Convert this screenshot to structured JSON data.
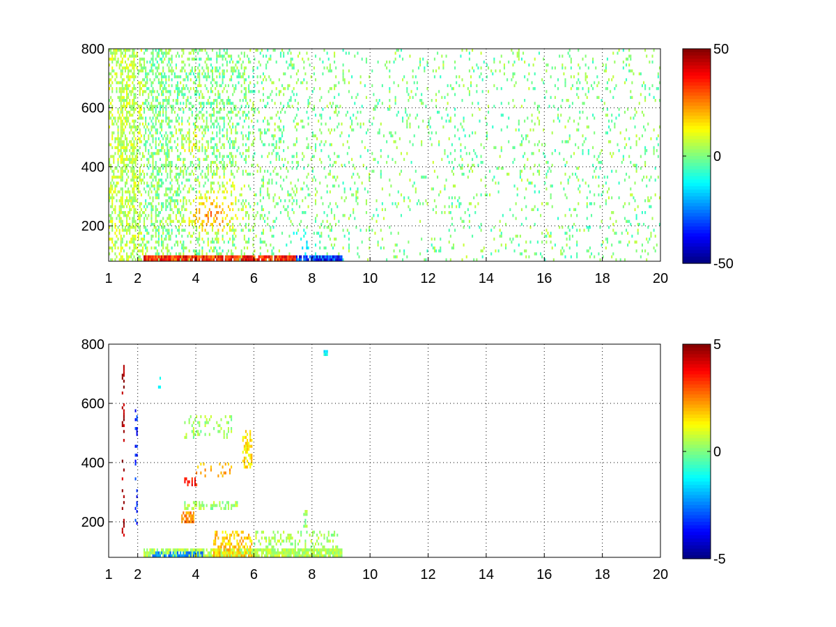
{
  "chart_data": [
    {
      "type": "heatmap",
      "title": "",
      "xlabel": "",
      "ylabel": "",
      "xlim": [
        1,
        20
      ],
      "ylim": [
        80,
        800
      ],
      "xticks": [
        "1",
        "2",
        "4",
        "6",
        "8",
        "10",
        "12",
        "14",
        "16",
        "18",
        "20"
      ],
      "yticks": [
        "200",
        "400",
        "600",
        "800"
      ],
      "grid": true,
      "colorbar": {
        "range": [
          -50,
          50
        ],
        "ticks": [
          "50",
          "0",
          "-50"
        ],
        "colormap": "jet"
      },
      "value_range": [
        -50,
        50
      ],
      "seed": 17,
      "blobs": [
        {
          "x": 4.5,
          "y": 230,
          "sx": 0.8,
          "sy": 60,
          "v": 22
        },
        {
          "x": 3.8,
          "y": 470,
          "sx": 0.5,
          "sy": 60,
          "v": 10
        },
        {
          "x": 5.0,
          "y": 300,
          "sx": 0.9,
          "sy": 90,
          "v": 6
        },
        {
          "x": 7.8,
          "y": 130,
          "sx": 0.5,
          "sy": 50,
          "v": -20
        }
      ],
      "bottom_band": {
        "xmin": 2.2,
        "xmax": 9.0,
        "ymax": 100,
        "hot_to": 7.4,
        "hot_v": 45,
        "cold_v": -45
      }
    },
    {
      "type": "heatmap",
      "title": "",
      "xlabel": "",
      "ylabel": "",
      "xlim": [
        1,
        20
      ],
      "ylim": [
        80,
        800
      ],
      "xticks": [
        "1",
        "2",
        "4",
        "6",
        "8",
        "10",
        "12",
        "14",
        "16",
        "18",
        "20"
      ],
      "yticks": [
        "200",
        "400",
        "600",
        "800"
      ],
      "grid": true,
      "colorbar": {
        "range": [
          -5,
          5
        ],
        "ticks": [
          "5",
          "0",
          "-5"
        ],
        "colormap": "jet"
      },
      "value_range": [
        -5,
        5
      ],
      "seed": 29,
      "segments": [
        {
          "x0": 2.2,
          "x1": 9.0,
          "y0": 80,
          "y1": 105,
          "v": 0.5,
          "p": 0.85
        },
        {
          "x0": 2.5,
          "x1": 4.2,
          "y0": 80,
          "y1": 100,
          "v": -2.5,
          "p": 0.6
        },
        {
          "x0": 4.6,
          "x1": 5.9,
          "y0": 80,
          "y1": 165,
          "v": 1.8,
          "p": 0.45
        },
        {
          "x0": 6.0,
          "x1": 8.9,
          "y0": 80,
          "y1": 165,
          "v": 0.4,
          "p": 0.3
        },
        {
          "x0": 3.6,
          "x1": 5.4,
          "y0": 240,
          "y1": 265,
          "v": 0.3,
          "p": 0.55
        },
        {
          "x0": 3.5,
          "x1": 3.9,
          "y0": 195,
          "y1": 235,
          "v": 2.4,
          "p": 0.75
        },
        {
          "x0": 3.6,
          "x1": 4.0,
          "y0": 320,
          "y1": 345,
          "v": 3.5,
          "p": 0.5
        },
        {
          "x0": 5.6,
          "x1": 5.9,
          "y0": 380,
          "y1": 510,
          "v": 1.5,
          "p": 0.55
        },
        {
          "x0": 4.0,
          "x1": 5.2,
          "y0": 350,
          "y1": 400,
          "v": 2.0,
          "p": 0.2
        },
        {
          "x0": 3.6,
          "x1": 5.2,
          "y0": 480,
          "y1": 555,
          "v": 0.3,
          "p": 0.2
        },
        {
          "x0": 1.45,
          "x1": 1.55,
          "y0": 130,
          "y1": 750,
          "v": 4.5,
          "p": 0.25
        },
        {
          "x0": 1.9,
          "x1": 1.97,
          "y0": 180,
          "y1": 600,
          "v": -3.5,
          "p": 0.2
        },
        {
          "x0": 8.4,
          "x1": 8.55,
          "y0": 760,
          "y1": 775,
          "v": -1.2,
          "p": 1.0
        },
        {
          "x0": 2.7,
          "x1": 2.8,
          "y0": 650,
          "y1": 690,
          "v": -1.0,
          "p": 0.4
        },
        {
          "x0": 7.7,
          "x1": 7.85,
          "y0": 180,
          "y1": 260,
          "v": 0.2,
          "p": 0.4
        }
      ]
    }
  ]
}
